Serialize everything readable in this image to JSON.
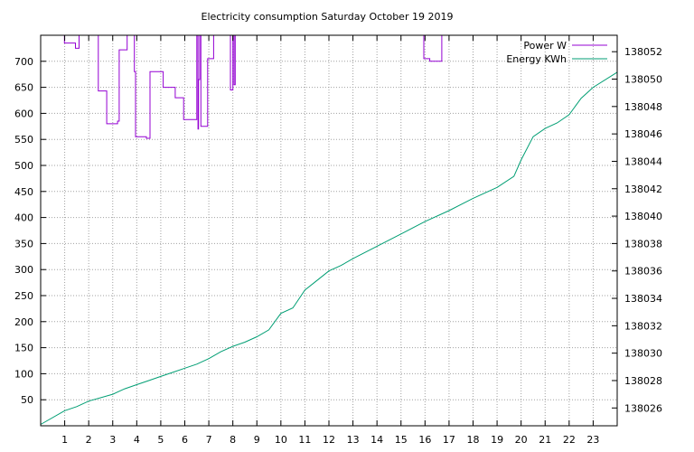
{
  "chart_data": {
    "type": "line",
    "title": "Electricity consumption Saturday October 19 2019",
    "xlabel": "",
    "ylabel": "",
    "y2label": "",
    "xlim": [
      0,
      24
    ],
    "ylim": [
      0,
      750
    ],
    "y2lim": [
      138024.7,
      138053.2
    ],
    "grid": true,
    "legend_position": "top-right",
    "x_ticks": [
      1,
      2,
      3,
      4,
      5,
      6,
      7,
      8,
      9,
      10,
      11,
      12,
      13,
      14,
      15,
      16,
      17,
      18,
      19,
      20,
      21,
      22,
      23
    ],
    "y_ticks": [
      50,
      100,
      150,
      200,
      250,
      300,
      350,
      400,
      450,
      500,
      550,
      600,
      650,
      700
    ],
    "y2_ticks": [
      138026,
      138028,
      138030,
      138032,
      138034,
      138036,
      138038,
      138040,
      138042,
      138044,
      138046,
      138048,
      138050,
      138052
    ],
    "series": [
      {
        "name": "Power W",
        "axis": "left",
        "color": "#9400d3",
        "step": true,
        "x": [
          0.99,
          0.99,
          1.45,
          1.45,
          1.6,
          1.6,
          1.65,
          1.65,
          2.4,
          2.4,
          2.75,
          2.75,
          3.2,
          3.2,
          3.27,
          3.27,
          3.6,
          3.6,
          3.9,
          3.9,
          3.95,
          3.95,
          4.4,
          4.4,
          4.55,
          4.55,
          5.1,
          5.1,
          5.6,
          5.6,
          5.95,
          5.95,
          6.5,
          6.5,
          6.55,
          6.55,
          6.57,
          6.57,
          6.62,
          6.62,
          6.67,
          6.67,
          6.95,
          6.95,
          7.2,
          7.2,
          7.9,
          7.9,
          8.0,
          8.0,
          8.05,
          8.05,
          8.1,
          8.1,
          8.8,
          8.8,
          15.95,
          15.95,
          16.2,
          16.2,
          16.7,
          16.7
        ],
        "values": [
          750,
          735,
          735,
          725,
          725,
          750,
          750,
          750,
          750,
          643,
          643,
          580,
          580,
          585,
          585,
          722,
          722,
          750,
          750,
          680,
          680,
          555,
          555,
          552,
          552,
          680,
          680,
          650,
          650,
          630,
          630,
          588,
          588,
          750,
          750,
          570,
          570,
          665,
          665,
          750,
          750,
          575,
          575,
          705,
          705,
          750,
          750,
          645,
          645,
          750,
          750,
          655,
          655,
          750,
          750,
          750,
          750,
          705,
          705,
          700,
          700,
          750
        ]
      },
      {
        "name": "Energy KWh",
        "axis": "right",
        "color": "#009e73",
        "step": false,
        "x": [
          0,
          1,
          1.5,
          2,
          3,
          3.5,
          4,
          4.5,
          5,
          5.5,
          6,
          6.5,
          7,
          7.5,
          8,
          8.5,
          9,
          9.5,
          10,
          10.5,
          11,
          11.5,
          12,
          12.5,
          13,
          14,
          15,
          16,
          17,
          18,
          19,
          19.7,
          20,
          20.5,
          21,
          21.5,
          22,
          22.5,
          23,
          24
        ],
        "values": [
          138024.8,
          138025.8,
          138026.1,
          138026.5,
          138027,
          138027.4,
          138027.7,
          138028.0,
          138028.3,
          138028.6,
          138028.9,
          138029.2,
          138029.6,
          138030.1,
          138030.5,
          138030.8,
          138031.2,
          138031.7,
          138032.9,
          138033.3,
          138034.6,
          138035.3,
          138036.0,
          138036.4,
          138036.9,
          138037.8,
          138038.7,
          138039.6,
          138040.4,
          138041.3,
          138042.1,
          138042.9,
          138044.1,
          138045.8,
          138046.4,
          138046.8,
          138047.4,
          138048.6,
          138049.4,
          138050.5
        ]
      }
    ]
  }
}
